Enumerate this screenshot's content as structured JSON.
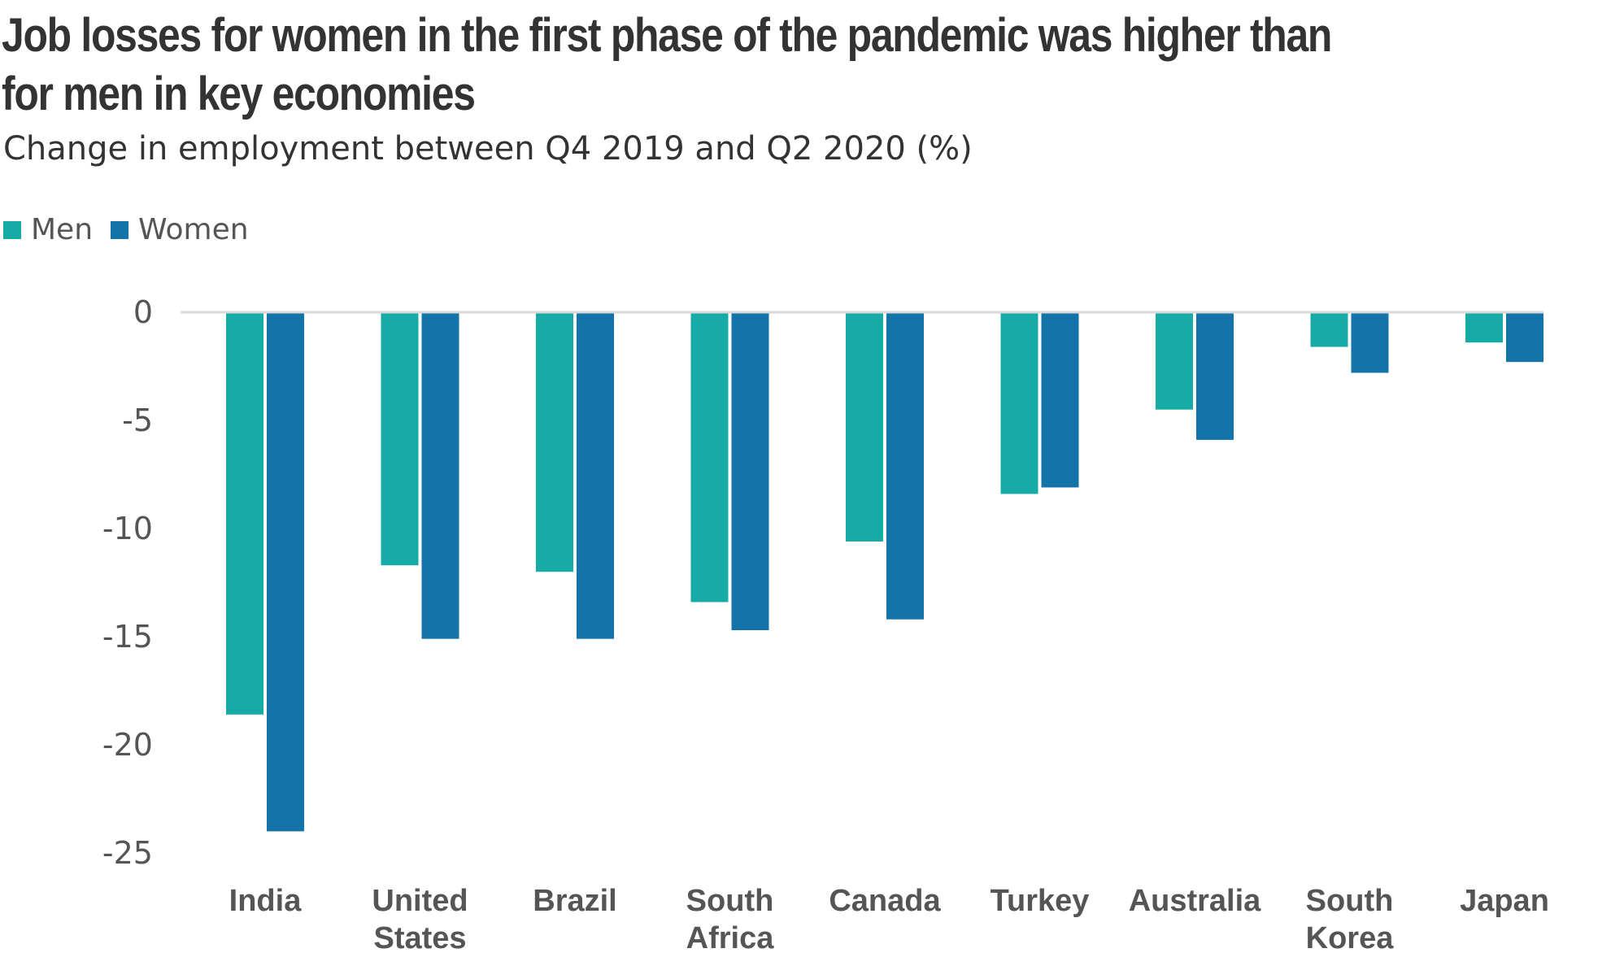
{
  "chart_data": {
    "type": "bar",
    "title": "Job losses for women in the first phase of the pandemic was higher than for men in key economies",
    "subtitle": "Change in employment between Q4 2019 and Q2 2020 (%)",
    "categories": [
      "India",
      "United States",
      "Brazil",
      "South Africa",
      "Canada",
      "Turkey",
      "Australia",
      "South Korea",
      "Japan"
    ],
    "category_lines": [
      [
        "India"
      ],
      [
        "United",
        "States"
      ],
      [
        "Brazil"
      ],
      [
        "South",
        "Africa"
      ],
      [
        "Canada"
      ],
      [
        "Turkey"
      ],
      [
        "Australia"
      ],
      [
        "South",
        "Korea"
      ],
      [
        "Japan"
      ]
    ],
    "series": [
      {
        "name": "Men",
        "color": "#17ABA6",
        "values": [
          -18.6,
          -11.7,
          -12.0,
          -13.4,
          -10.6,
          -8.4,
          -4.5,
          -1.6,
          -1.4
        ]
      },
      {
        "name": "Women",
        "color": "#1473A8",
        "values": [
          -24.0,
          -15.1,
          -15.1,
          -14.7,
          -14.2,
          -8.1,
          -5.9,
          -2.8,
          -2.3
        ]
      }
    ],
    "yticks": [
      "0",
      "-5",
      "-10",
      "-15",
      "-20",
      "-25"
    ],
    "ytick_values": [
      0,
      -5,
      -10,
      -15,
      -20,
      -25
    ],
    "ylim": [
      -25,
      0
    ],
    "xlabel": "",
    "ylabel": "",
    "legend_position": "top-left",
    "grid": false
  }
}
